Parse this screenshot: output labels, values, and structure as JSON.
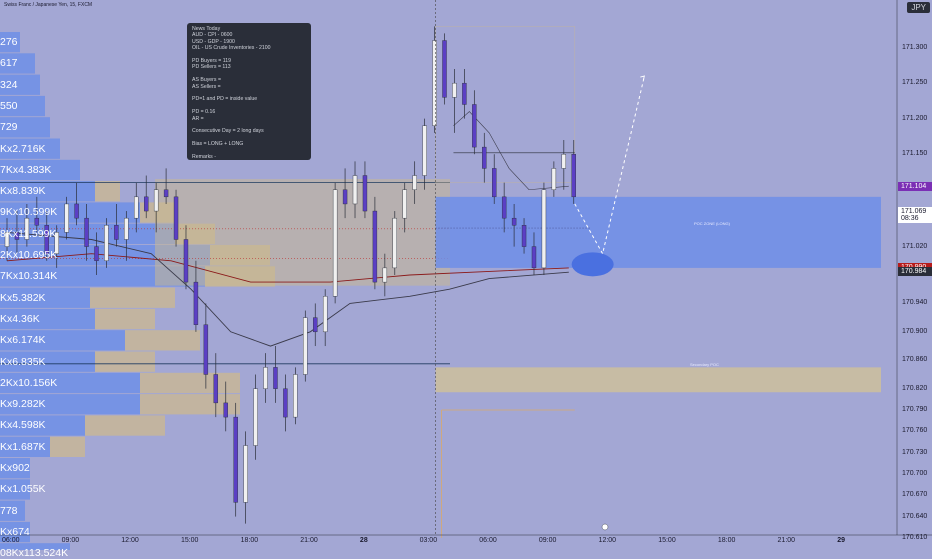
{
  "header": {
    "title": "Swiss Franc / Japanese Yen, 15, FXCM",
    "currency": "JPY"
  },
  "news_box": {
    "lines": [
      "News Today",
      "AUD - CPI - 0600",
      "USD - GDP - 1900",
      "OIL - US Crude Inventories - 2100",
      "",
      "PD Buyers = 119",
      "PD Sellers = 113",
      "",
      "AS Buyers =",
      "AS Sellers =",
      "",
      "PD=1 and PD = inside value",
      "",
      "PD = 0.16",
      "AR =",
      "",
      "Consecutive Day = 2 long days",
      "",
      "Bias = LONG + LONG",
      "",
      "Remarks -"
    ]
  },
  "volume_profile": {
    "labels": [
      "276",
      "617",
      "324",
      "550",
      "729",
      "Kx2.716K",
      "7Kx4.383K",
      "Kx8.839K",
      "9Kx10.599K",
      "8Kx11.599K",
      "2Kx10.695K",
      "7Kx10.314K",
      "Kx5.382K",
      "Kx4.36K",
      "Kx6.174K",
      "Kx6.835K",
      "2Kx10.156K",
      "Kx9.282K",
      "Kx4.598K",
      "Kx1.687K",
      "Kx902",
      "Kx1.055K",
      "778",
      "Kx674",
      "08Kx113.524K"
    ],
    "buy_widths": [
      20,
      35,
      40,
      45,
      50,
      60,
      80,
      95,
      140,
      175,
      210,
      205,
      90,
      95,
      125,
      95,
      140,
      140,
      85,
      50,
      30,
      30,
      25,
      30,
      70
    ],
    "sell_widths": [
      0,
      0,
      0,
      0,
      0,
      0,
      0,
      25,
      35,
      40,
      60,
      70,
      85,
      60,
      75,
      60,
      100,
      100,
      80,
      35,
      0,
      0,
      0,
      0,
      0
    ]
  },
  "zones": {
    "poc_label": "POC ZONE (LONG)",
    "secondary_label": "Secondary POC"
  },
  "price_axis": {
    "ticks": [
      "171.300",
      "171.250",
      "171.200",
      "171.150",
      "171.069",
      "171.020",
      "170.940",
      "170.900",
      "170.860",
      "170.820",
      "170.790",
      "170.760",
      "170.730",
      "170.700",
      "170.670",
      "170.640",
      "170.610"
    ],
    "tick_values": [
      171.3,
      171.25,
      171.2,
      171.15,
      171.069,
      171.02,
      170.94,
      170.9,
      170.86,
      170.82,
      170.79,
      170.76,
      170.73,
      170.7,
      170.67,
      170.64,
      170.61
    ],
    "labels": [
      {
        "text": "171.104",
        "value": 171.104,
        "bg": "#7b2fb5",
        "fg": "#ffffff"
      },
      {
        "text": "171.069",
        "value": 171.069,
        "bg": "#ffffff",
        "fg": "#1a1a2e",
        "sub": "08:36"
      },
      {
        "text": "170.990",
        "value": 170.99,
        "bg": "#b71c1c",
        "fg": "#ffffff"
      },
      {
        "text": "170.984",
        "value": 170.984,
        "bg": "#2a2e39",
        "fg": "#ffffff"
      }
    ]
  },
  "time_axis": {
    "ticks": [
      {
        "text": "06:00",
        "bold": false
      },
      {
        "text": "09:00",
        "bold": false
      },
      {
        "text": "12:00",
        "bold": false
      },
      {
        "text": "15:00",
        "bold": false
      },
      {
        "text": "18:00",
        "bold": false
      },
      {
        "text": "21:00",
        "bold": false
      },
      {
        "text": "28",
        "bold": true
      },
      {
        "text": "03:00",
        "bold": false
      },
      {
        "text": "06:00",
        "bold": false
      },
      {
        "text": "09:00",
        "bold": false
      },
      {
        "text": "12:00",
        "bold": false
      },
      {
        "text": "15:00",
        "bold": false
      },
      {
        "text": "18:00",
        "bold": false
      },
      {
        "text": "21:00",
        "bold": false
      },
      {
        "text": "29",
        "bold": true
      }
    ],
    "tick_hours": [
      6,
      9,
      12,
      15,
      18,
      21,
      24,
      27,
      30,
      33,
      36,
      39,
      42,
      45,
      48
    ]
  },
  "colors": {
    "background": "#a3a7d4",
    "bull": "#f0f0f0",
    "bear": "#5b3fc4",
    "vp_buy": "#6e8fe6",
    "vp_sell": "#c9b892",
    "poc_zone": "#6f8ee8",
    "secondary_zone": "#cbbf9f"
  },
  "chart_data": {
    "type": "candlestick",
    "symbol": "CHFJPY",
    "timeframe": "15",
    "series": [
      {
        "name": "candles",
        "values": [
          [
            5.75,
            171.02,
            171.06,
            171.0,
            171.04
          ],
          [
            6.25,
            171.04,
            171.07,
            171.01,
            171.03
          ],
          [
            6.75,
            171.03,
            171.08,
            171.02,
            171.06
          ],
          [
            7.25,
            171.06,
            171.09,
            171.04,
            171.05
          ],
          [
            7.75,
            171.05,
            171.07,
            171.0,
            171.01
          ],
          [
            8.25,
            171.01,
            171.05,
            170.99,
            171.04
          ],
          [
            8.75,
            171.04,
            171.09,
            171.03,
            171.08
          ],
          [
            9.25,
            171.08,
            171.11,
            171.05,
            171.06
          ],
          [
            9.75,
            171.06,
            171.08,
            171.0,
            171.02
          ],
          [
            10.25,
            171.02,
            171.04,
            170.98,
            171.0
          ],
          [
            10.75,
            171.0,
            171.06,
            170.99,
            171.05
          ],
          [
            11.25,
            171.05,
            171.08,
            171.02,
            171.03
          ],
          [
            11.75,
            171.03,
            171.07,
            171.0,
            171.06
          ],
          [
            12.25,
            171.06,
            171.11,
            171.04,
            171.09
          ],
          [
            12.75,
            171.09,
            171.12,
            171.06,
            171.07
          ],
          [
            13.25,
            171.07,
            171.11,
            171.04,
            171.1
          ],
          [
            13.75,
            171.1,
            171.13,
            171.08,
            171.09
          ],
          [
            14.25,
            171.09,
            171.1,
            171.02,
            171.03
          ],
          [
            14.75,
            171.03,
            171.05,
            170.96,
            170.97
          ],
          [
            15.25,
            170.97,
            171.0,
            170.9,
            170.91
          ],
          [
            15.75,
            170.91,
            170.94,
            170.82,
            170.84
          ],
          [
            16.25,
            170.84,
            170.87,
            170.78,
            170.8
          ],
          [
            16.75,
            170.8,
            170.83,
            170.76,
            170.78
          ],
          [
            17.25,
            170.78,
            170.8,
            170.64,
            170.66
          ],
          [
            17.75,
            170.66,
            170.76,
            170.63,
            170.74
          ],
          [
            18.25,
            170.74,
            170.84,
            170.72,
            170.82
          ],
          [
            18.75,
            170.82,
            170.87,
            170.8,
            170.85
          ],
          [
            19.25,
            170.85,
            170.88,
            170.8,
            170.82
          ],
          [
            19.75,
            170.82,
            170.84,
            170.76,
            170.78
          ],
          [
            20.25,
            170.78,
            170.85,
            170.77,
            170.84
          ],
          [
            20.75,
            170.84,
            170.93,
            170.83,
            170.92
          ],
          [
            21.25,
            170.92,
            170.94,
            170.88,
            170.9
          ],
          [
            21.75,
            170.9,
            170.96,
            170.88,
            170.95
          ],
          [
            22.25,
            170.95,
            171.11,
            170.94,
            171.1
          ],
          [
            22.75,
            171.1,
            171.13,
            171.06,
            171.08
          ],
          [
            23.25,
            171.08,
            171.14,
            171.06,
            171.12
          ],
          [
            23.75,
            171.12,
            171.14,
            171.06,
            171.07
          ],
          [
            24.25,
            171.07,
            171.09,
            170.96,
            170.97
          ],
          [
            24.75,
            170.97,
            171.01,
            170.95,
            170.99
          ],
          [
            25.25,
            170.99,
            171.07,
            170.98,
            171.06
          ],
          [
            25.75,
            171.06,
            171.11,
            171.04,
            171.1
          ],
          [
            26.25,
            171.1,
            171.14,
            171.08,
            171.12
          ],
          [
            26.75,
            171.12,
            171.2,
            171.1,
            171.19
          ],
          [
            27.25,
            171.19,
            171.33,
            171.18,
            171.31
          ],
          [
            27.75,
            171.31,
            171.32,
            171.22,
            171.23
          ],
          [
            28.25,
            171.23,
            171.27,
            171.18,
            171.25
          ],
          [
            28.75,
            171.25,
            171.27,
            171.2,
            171.22
          ],
          [
            29.25,
            171.22,
            171.24,
            171.15,
            171.16
          ],
          [
            29.75,
            171.16,
            171.18,
            171.11,
            171.13
          ],
          [
            30.25,
            171.13,
            171.15,
            171.08,
            171.09
          ],
          [
            30.75,
            171.09,
            171.11,
            171.04,
            171.06
          ],
          [
            31.25,
            171.06,
            171.08,
            171.02,
            171.05
          ],
          [
            31.75,
            171.05,
            171.06,
            171.01,
            171.02
          ],
          [
            32.25,
            171.02,
            171.04,
            170.98,
            170.99
          ],
          [
            32.75,
            170.99,
            171.11,
            170.98,
            171.1
          ],
          [
            33.25,
            171.1,
            171.14,
            171.09,
            171.13
          ],
          [
            33.75,
            171.13,
            171.17,
            171.1,
            171.15
          ],
          [
            34.25,
            171.15,
            171.17,
            171.08,
            171.09
          ]
        ]
      },
      {
        "name": "ma_red",
        "values": [
          [
            5.75,
            171.0
          ],
          [
            10,
            171.01
          ],
          [
            14,
            171.0
          ],
          [
            18,
            170.97
          ],
          [
            22,
            170.97
          ],
          [
            26,
            170.98
          ],
          [
            30,
            170.985
          ],
          [
            34,
            170.99
          ]
        ]
      },
      {
        "name": "ma_dark",
        "values": [
          [
            5.75,
            171.04
          ],
          [
            10,
            171.03
          ],
          [
            13,
            171.01
          ],
          [
            15,
            170.96
          ],
          [
            17,
            170.9
          ],
          [
            19,
            170.88
          ],
          [
            21,
            170.9
          ],
          [
            23,
            170.94
          ],
          [
            26,
            170.95
          ],
          [
            28,
            170.96
          ],
          [
            30,
            170.975
          ],
          [
            34,
            170.984
          ]
        ]
      }
    ],
    "x_unit": "hours from 00:00 on first day",
    "ylim": [
      170.6,
      171.36
    ],
    "xlim": [
      5.8,
      49.7
    ],
    "annotations": {
      "poc_zone": {
        "y_top": 171.09,
        "y_bottom": 170.99,
        "x_start": 27.3,
        "x_end": 49.7
      },
      "secondary_zone": {
        "y_top": 170.85,
        "y_bottom": 170.815,
        "x_start": 27.3,
        "x_end": 49.7
      },
      "projection_path": [
        [
          34.3,
          171.08
        ],
        [
          35.7,
          171.01
        ],
        [
          37.8,
          171.26
        ]
      ],
      "target_ellipse": {
        "x": 35.2,
        "y": 170.995
      },
      "current_time_line": 27.3
    }
  }
}
